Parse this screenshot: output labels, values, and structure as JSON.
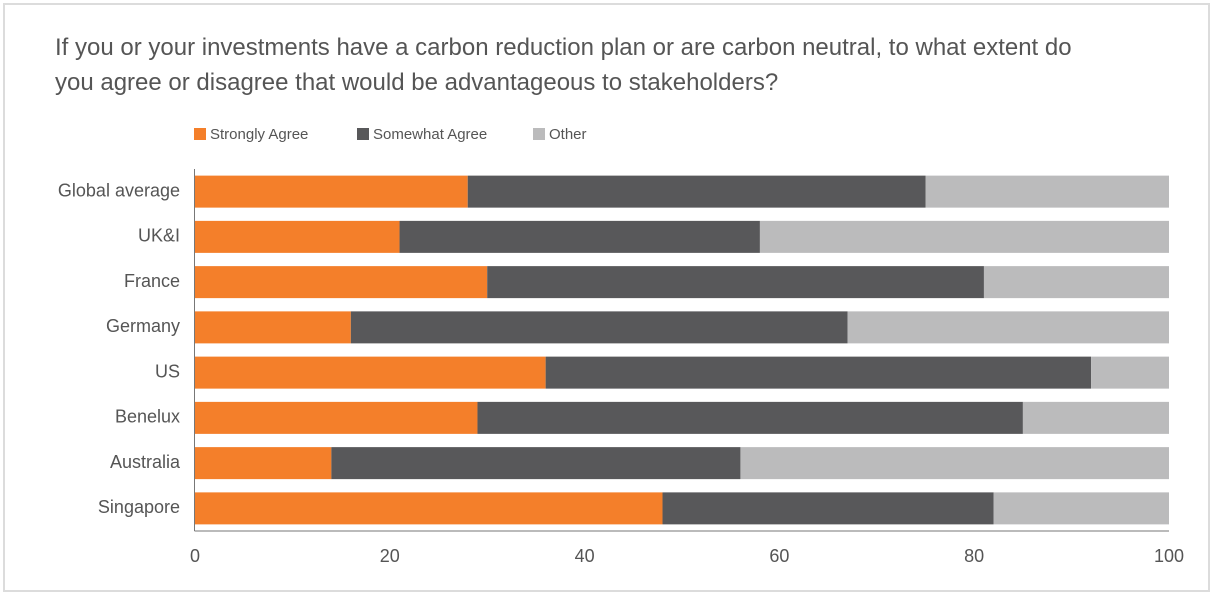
{
  "chart_data": {
    "type": "stacked-bar-horizontal",
    "title": "If you or your investments have a carbon reduction plan or are carbon neutral, to what extent do you agree or disagree that would be advantageous to stakeholders?",
    "categories": [
      "Global average",
      "UK&I",
      "France",
      "Germany",
      "US",
      "Benelux",
      "Australia",
      "Singapore"
    ],
    "series": [
      {
        "name": "Strongly Agree",
        "color": "#f47f2a",
        "values": [
          28,
          21,
          30,
          16,
          36,
          29,
          14,
          48
        ]
      },
      {
        "name": "Somewhat Agree",
        "color": "#58585a",
        "values": [
          47,
          37,
          51,
          51,
          56,
          56,
          42,
          34
        ]
      },
      {
        "name": "Other",
        "color": "#bbbbbc",
        "values": [
          25,
          42,
          19,
          33,
          8,
          15,
          44,
          18
        ]
      }
    ],
    "xlim": [
      0,
      100
    ],
    "xticks": [
      0,
      20,
      40,
      60,
      80,
      100
    ]
  }
}
